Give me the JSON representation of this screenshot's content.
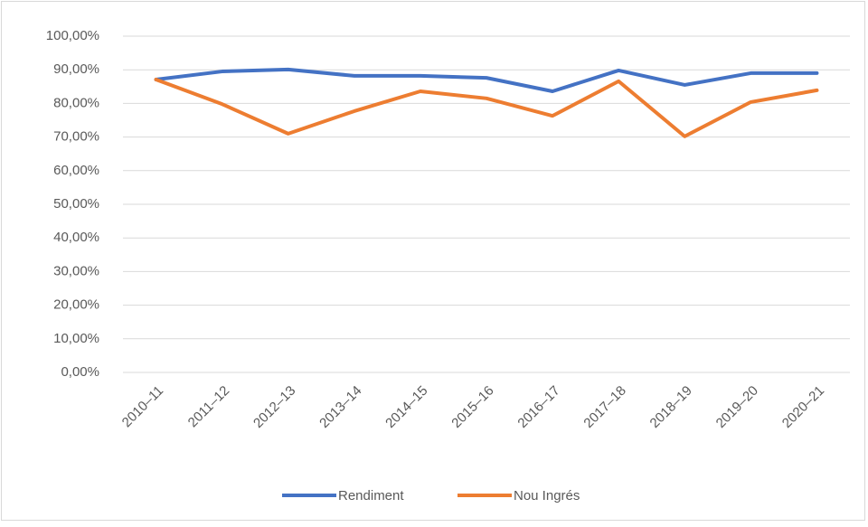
{
  "chart_data": {
    "type": "line",
    "categories": [
      "2010–11",
      "2011–12",
      "2012–13",
      "2013–14",
      "2014–15",
      "2015–16",
      "2016–17",
      "2017–18",
      "2018–19",
      "2019–20",
      "2020–21"
    ],
    "series": [
      {
        "name": "Rendiment",
        "color": "#4472c4",
        "values": [
          87.1,
          89.5,
          90.1,
          88.2,
          88.2,
          87.6,
          83.6,
          89.8,
          85.5,
          89.0,
          89.0
        ]
      },
      {
        "name": "Nou Ingrés",
        "color": "#ed7d31",
        "values": [
          87.1,
          79.8,
          71.0,
          77.7,
          83.6,
          81.5,
          76.3,
          86.6,
          70.2,
          80.4,
          83.9
        ]
      }
    ],
    "ylim": [
      0,
      100
    ],
    "yticks": [
      {
        "value": 0,
        "label": "0,00%"
      },
      {
        "value": 10,
        "label": "10,00%"
      },
      {
        "value": 20,
        "label": "20,00%"
      },
      {
        "value": 30,
        "label": "30,00%"
      },
      {
        "value": 40,
        "label": "40,00%"
      },
      {
        "value": 50,
        "label": "50,00%"
      },
      {
        "value": 60,
        "label": "60,00%"
      },
      {
        "value": 70,
        "label": "70,00%"
      },
      {
        "value": 80,
        "label": "80,00%"
      },
      {
        "value": 90,
        "label": "90,00%"
      },
      {
        "value": 100,
        "label": "100,00%"
      }
    ],
    "grid": true,
    "legend": "bottom"
  }
}
